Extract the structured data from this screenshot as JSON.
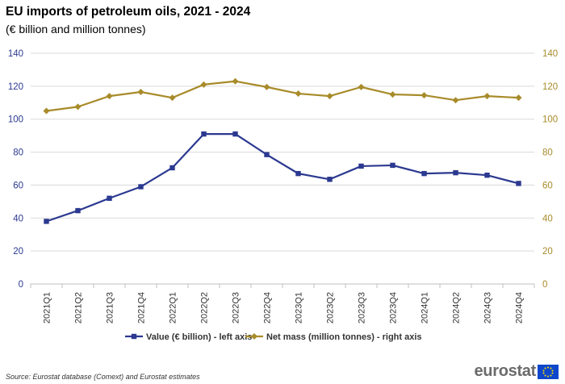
{
  "header": {
    "title": "EU imports of petroleum oils,  2021 - 2024",
    "subtitle": "(€ billion and million tonnes)"
  },
  "footer": {
    "source": "Source: Eurostat database (Comext) and Eurostat estimates",
    "logo_text": "eurostat"
  },
  "colors": {
    "value": "#2b3990",
    "mass": "#a88b2a",
    "grid": "#d9d9d9"
  },
  "chart_data": {
    "type": "line",
    "categories": [
      "2021Q1",
      "2021Q2",
      "2021Q3",
      "2021Q4",
      "2022Q1",
      "2022Q2",
      "2022Q3",
      "2022Q4",
      "2023Q1",
      "2023Q2",
      "2023Q3",
      "2023Q4",
      "2024Q1",
      "2024Q2",
      "2024Q3",
      "2024Q4"
    ],
    "series": [
      {
        "name": "Value (€ billion) - left axis",
        "axis": "left",
        "color": "#2b3990",
        "marker": "square",
        "values": [
          38,
          44.5,
          52,
          59,
          70.5,
          91,
          91,
          78.5,
          67,
          63.5,
          71.5,
          72,
          67,
          67.5,
          66,
          61
        ]
      },
      {
        "name": "Net mass (million tonnes) - right axis",
        "axis": "right",
        "color": "#a88b2a",
        "marker": "diamond",
        "values": [
          105,
          107.5,
          114,
          116.5,
          113,
          121,
          123,
          119.5,
          115.5,
          114,
          119.5,
          115,
          114.5,
          111.5,
          114,
          113
        ]
      }
    ],
    "ylim_left": [
      0,
      140
    ],
    "ylim_right": [
      0,
      140
    ],
    "yticks_left": [
      0,
      20,
      40,
      60,
      80,
      100,
      120,
      140
    ],
    "yticks_right": [
      0,
      20,
      40,
      60,
      80,
      100,
      120,
      140
    ],
    "grid": true,
    "legend": "bottom-center"
  }
}
